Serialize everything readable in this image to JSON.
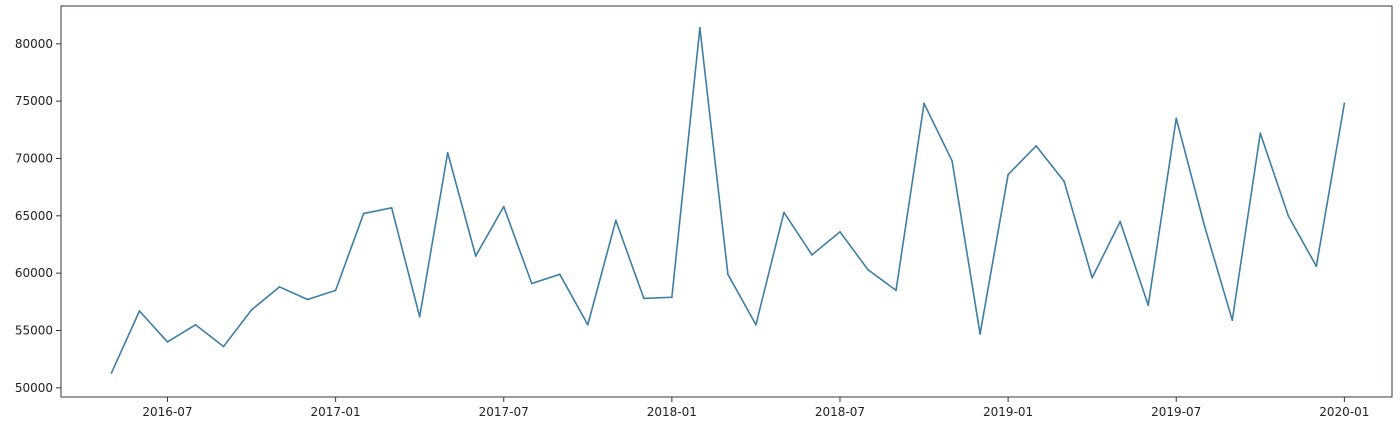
{
  "chart_data": {
    "type": "line",
    "title": "",
    "xlabel": "",
    "ylabel": "",
    "line_color": "#3f7ea3",
    "axis_color": "#2b3a4a",
    "x_start": "2016-05",
    "x_step": "month",
    "x_range_months": [
      -1.8,
      45.7
    ],
    "ylim": [
      49200,
      83300
    ],
    "yticks": [
      50000,
      55000,
      60000,
      65000,
      70000,
      75000,
      80000
    ],
    "ytick_labels": [
      "50000",
      "55000",
      "60000",
      "65000",
      "70000",
      "75000",
      "80000"
    ],
    "xtick_labels": [
      "2016-07",
      "2017-01",
      "2017-07",
      "2018-01",
      "2018-07",
      "2019-01",
      "2019-07",
      "2020-01"
    ],
    "xtick_month_index": [
      2,
      8,
      14,
      20,
      26,
      32,
      38,
      44
    ],
    "series": [
      {
        "name": "value",
        "x": [
          "2016-05",
          "2016-06",
          "2016-07",
          "2016-08",
          "2016-09",
          "2016-10",
          "2016-11",
          "2016-12",
          "2017-01",
          "2017-02",
          "2017-03",
          "2017-04",
          "2017-05",
          "2017-06",
          "2017-07",
          "2017-08",
          "2017-09",
          "2017-10",
          "2017-11",
          "2017-12",
          "2018-01",
          "2018-02",
          "2018-03",
          "2018-04",
          "2018-05",
          "2018-06",
          "2018-07",
          "2018-08",
          "2018-09",
          "2018-10",
          "2018-11",
          "2018-12",
          "2019-01",
          "2019-02",
          "2019-03",
          "2019-04",
          "2019-05",
          "2019-06",
          "2019-07",
          "2019-08",
          "2019-09",
          "2019-10",
          "2019-11",
          "2019-12",
          "2020-01"
        ],
        "values": [
          51300,
          56700,
          54000,
          55500,
          53600,
          56800,
          58800,
          57700,
          58500,
          65200,
          65700,
          56200,
          70500,
          61500,
          65800,
          59100,
          59900,
          55500,
          64600,
          57800,
          57900,
          81400,
          59900,
          55500,
          65300,
          61600,
          63600,
          60300,
          58500,
          74800,
          69800,
          54700,
          68600,
          71100,
          68000,
          59600,
          64500,
          57200,
          73500,
          64200,
          55900,
          72200,
          65000,
          60600,
          74800
        ]
      }
    ]
  }
}
